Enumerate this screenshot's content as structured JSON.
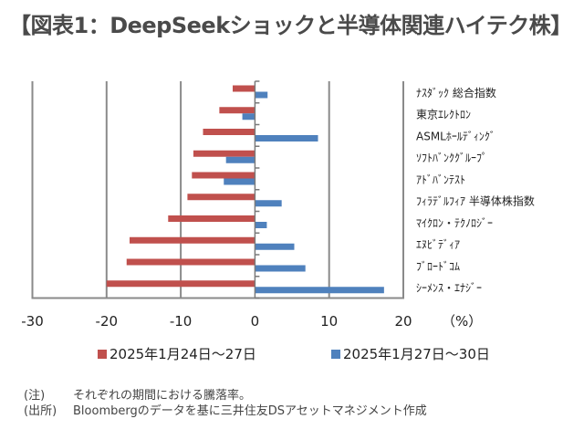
{
  "title": "【図表1：DeepSeekショックと半導体関連ハイテク株】",
  "chart_data": {
    "type": "bar",
    "orientation": "horizontal",
    "title": "【図表1：DeepSeekショックと半導体関連ハイテク株】",
    "xlabel": "(%)",
    "ylabel": "",
    "xlim": [
      -30,
      20
    ],
    "xticks": [
      -30,
      -20,
      -10,
      0,
      10,
      20
    ],
    "xtick_labels": [
      "-30",
      "-20",
      "-10",
      "0",
      "10",
      "20"
    ],
    "unit_label": "（%）",
    "grid": true,
    "legend_position": "bottom",
    "categories": [
      "ﾅｽﾀﾞｯｸ 総合指数",
      "東京ｴﾚｸﾄﾛﾝ",
      "ASMLﾎｰﾙﾃﾞｨﾝｸﾞ",
      "ｿﾌﾄﾊﾞﾝｸｸﾞﾙｰﾌﾟ",
      "ｱﾄﾞﾊﾞﾝﾃｽﾄ",
      "ﾌｨﾗﾃﾞﾙﾌｨｱ 半導体株指数",
      "ﾏｲｸﾛﾝ・ﾃｸﾉﾛｼﾞｰ",
      "ｴﾇﾋﾞﾃﾞｨｱ",
      "ﾌﾞﾛｰﾄﾞｺﾑ",
      "ｼｰﾒﾝｽ・ｴﾅｼﾞｰ"
    ],
    "series": [
      {
        "name": "2025年1月24日～27日",
        "color": "#C0504D",
        "values": [
          -3.0,
          -4.8,
          -7.0,
          -8.3,
          -8.5,
          -9.1,
          -11.7,
          -16.9,
          -17.3,
          -20.0
        ]
      },
      {
        "name": "2025年1月27日～30日",
        "color": "#4F81BD",
        "values": [
          1.7,
          -1.7,
          8.5,
          -3.9,
          -4.2,
          3.6,
          1.6,
          5.3,
          6.8,
          17.4
        ]
      }
    ]
  },
  "notes": [
    {
      "key": "(注)",
      "text": "それぞれの期間における騰落率。"
    },
    {
      "key": "(出所)",
      "text": "Bloombergのデータを基に三井住友DSアセットマネジメント作成"
    }
  ]
}
